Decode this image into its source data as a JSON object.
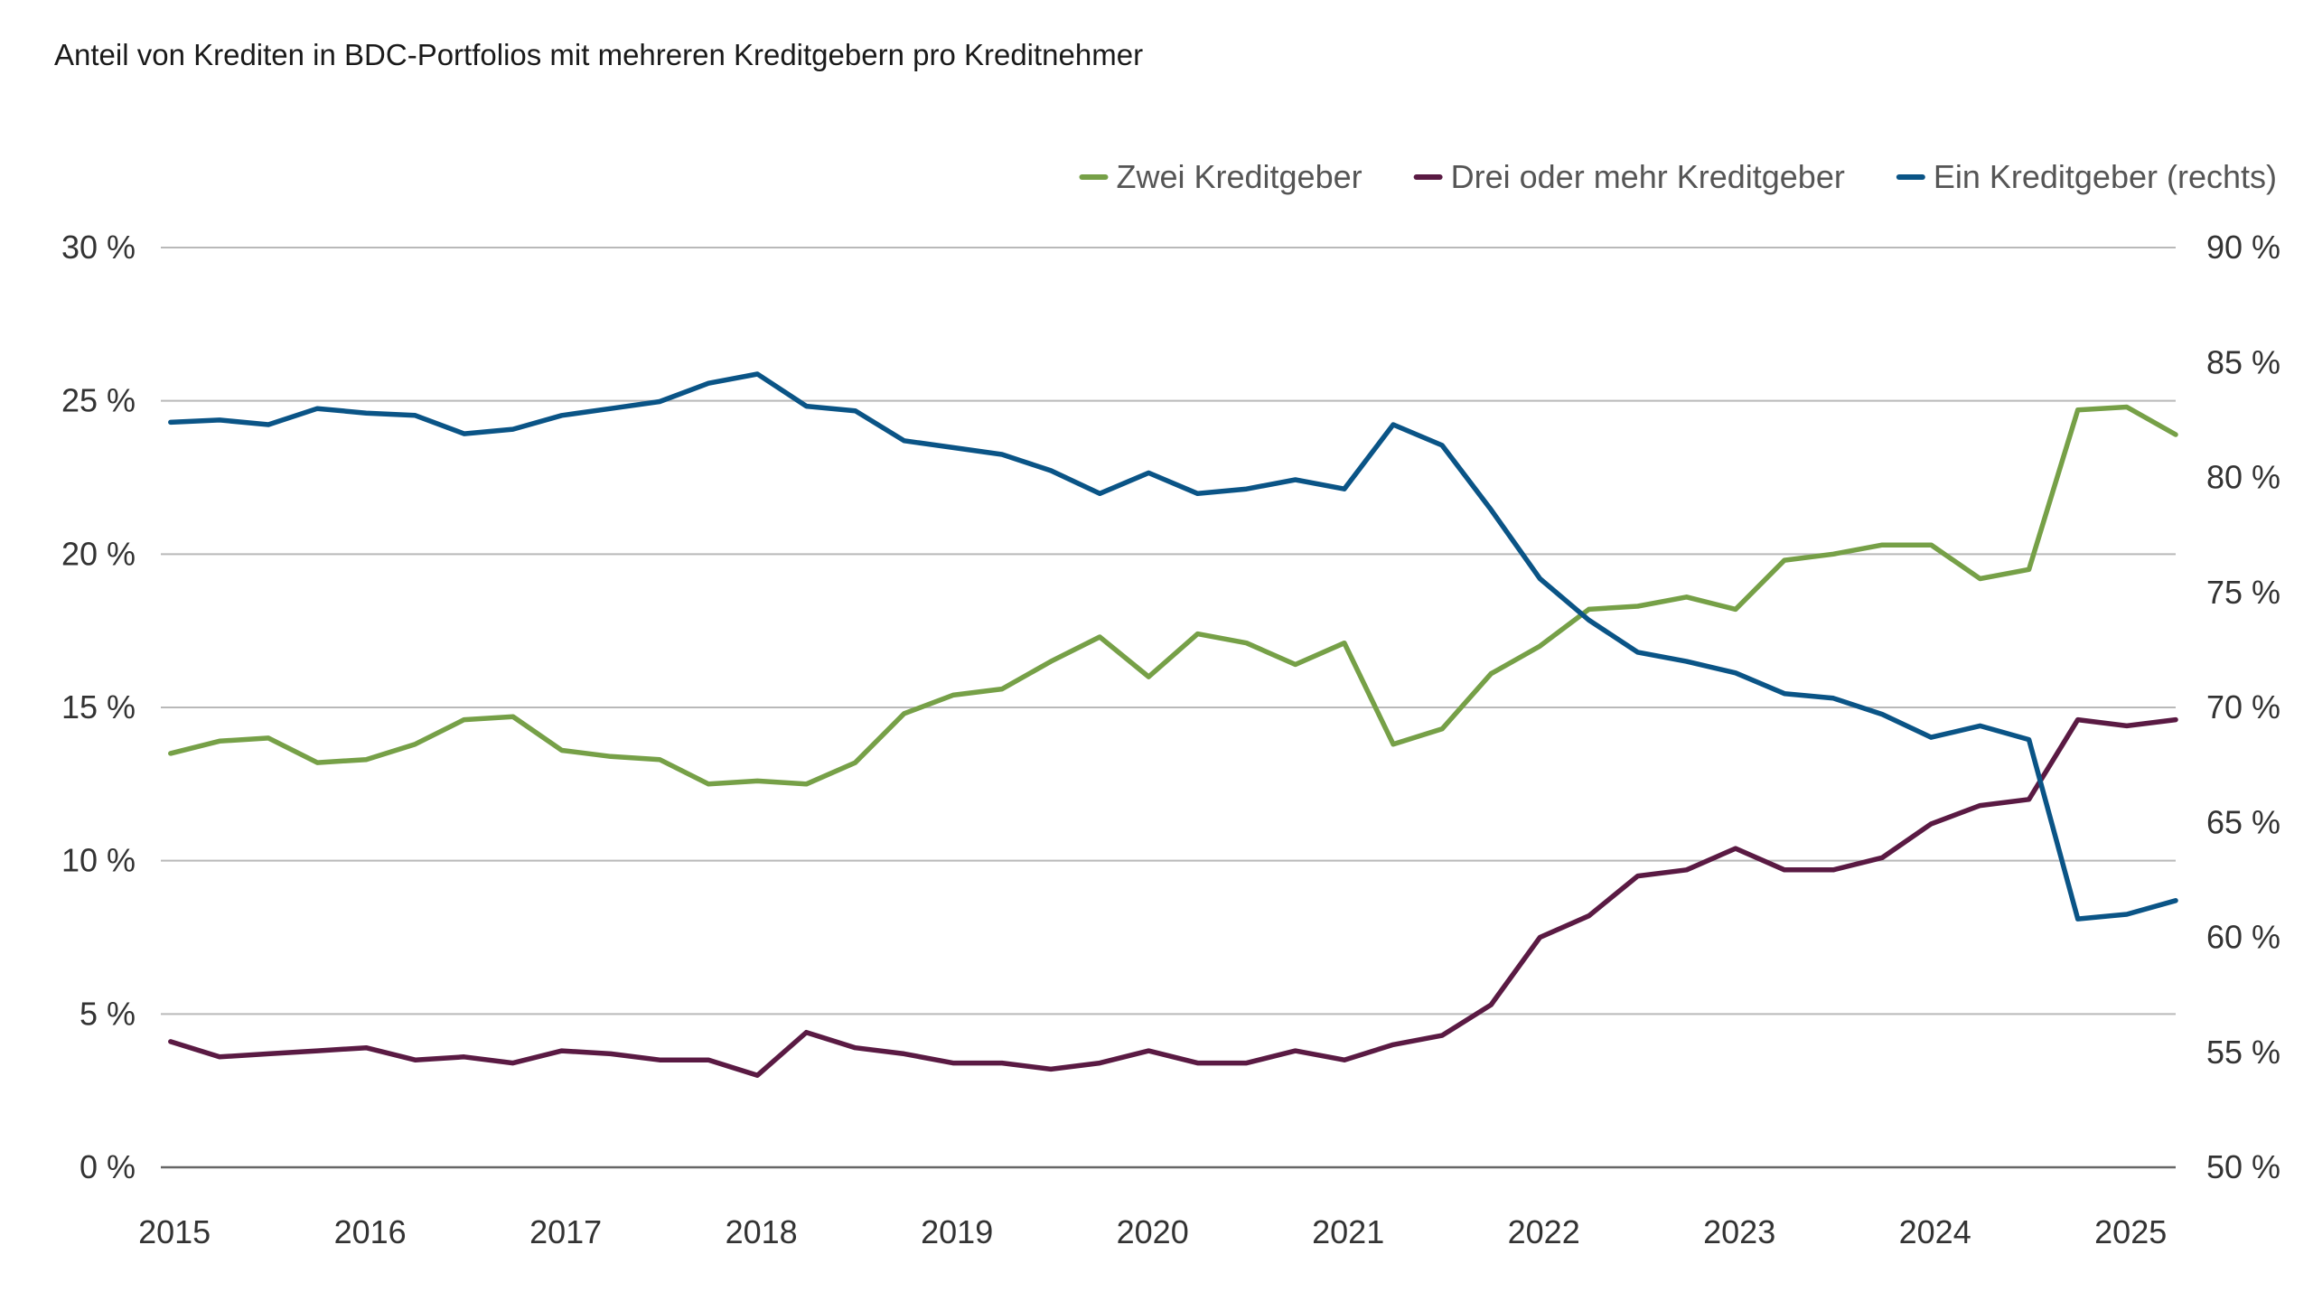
{
  "chart_data": {
    "type": "line",
    "title": "Anteil von Krediten in BDC-Portfolios mit mehreren Kreditgebern pro Kreditnehmer",
    "x_axis": {
      "start": 2014.95,
      "end": 2025.25,
      "year_ticks": [
        2015,
        2016,
        2017,
        2018,
        2019,
        2020,
        2021,
        2022,
        2023,
        2024,
        2025
      ],
      "year_labels": [
        "2015",
        "2016",
        "2017",
        "2018",
        "2019",
        "2020",
        "2021",
        "2022",
        "2023",
        "2024",
        "2025"
      ]
    },
    "y_left": {
      "range": [
        0,
        30
      ],
      "ticks": [
        0,
        5,
        10,
        15,
        20,
        25,
        30
      ],
      "tick_labels": [
        "0 %",
        "5 %",
        "10 %",
        "15 %",
        "20 %",
        "25 %",
        "30 %"
      ]
    },
    "y_right": {
      "range": [
        50,
        90
      ],
      "ticks": [
        50,
        55,
        60,
        65,
        70,
        75,
        80,
        85,
        90
      ],
      "tick_labels": [
        "50 %",
        "55 %",
        "60 %",
        "65 %",
        "70 %",
        "75 %",
        "80 %",
        "85 %",
        "90 %"
      ]
    },
    "grid": true,
    "legend_position": "top-right",
    "x": [
      2015.0,
      2015.25,
      2015.5,
      2015.75,
      2016.0,
      2016.25,
      2016.5,
      2016.75,
      2017.0,
      2017.25,
      2017.5,
      2017.75,
      2018.0,
      2018.25,
      2018.5,
      2018.75,
      2019.0,
      2019.25,
      2019.5,
      2019.75,
      2020.0,
      2020.25,
      2020.5,
      2020.75,
      2021.0,
      2021.25,
      2021.5,
      2021.75,
      2022.0,
      2022.25,
      2022.5,
      2022.75,
      2023.0,
      2023.25,
      2023.5,
      2023.75,
      2024.0,
      2024.25,
      2024.5,
      2024.75,
      2025.0,
      2025.25
    ],
    "series": [
      {
        "name": "Zwei Kreditgeber",
        "axis": "left",
        "color": "#76a047",
        "values": [
          13.5,
          13.9,
          14.0,
          13.2,
          13.3,
          13.8,
          14.6,
          14.7,
          13.6,
          13.4,
          13.3,
          12.5,
          12.6,
          12.5,
          13.2,
          14.8,
          15.4,
          15.6,
          16.5,
          17.3,
          16.0,
          17.4,
          17.1,
          16.4,
          17.1,
          13.8,
          14.3,
          16.1,
          17.0,
          18.2,
          18.3,
          18.6,
          18.2,
          19.8,
          20.0,
          20.3,
          20.3,
          19.2,
          19.5,
          24.7,
          24.8,
          23.9
        ]
      },
      {
        "name": "Drei oder mehr Kreditgeber",
        "axis": "left",
        "color": "#5a1a43",
        "values": [
          4.1,
          3.6,
          3.7,
          3.8,
          3.9,
          3.5,
          3.6,
          3.4,
          3.8,
          3.7,
          3.5,
          3.5,
          3.0,
          4.4,
          3.9,
          3.7,
          3.4,
          3.4,
          3.2,
          3.4,
          3.8,
          3.4,
          3.4,
          3.8,
          3.5,
          4.0,
          4.3,
          5.3,
          7.5,
          8.2,
          9.5,
          9.7,
          10.4,
          9.7,
          9.7,
          10.1,
          11.2,
          11.8,
          12.0,
          14.6,
          14.4,
          14.6
        ]
      },
      {
        "name": "Ein Kreditgeber (rechts)",
        "axis": "right",
        "color": "#0a5486",
        "values": [
          82.4,
          82.5,
          82.3,
          83.0,
          82.8,
          82.7,
          81.9,
          82.1,
          82.7,
          83.0,
          83.3,
          84.1,
          84.5,
          83.1,
          82.9,
          81.6,
          81.3,
          81.0,
          80.3,
          79.3,
          80.2,
          79.3,
          79.5,
          79.9,
          79.5,
          82.3,
          81.4,
          78.6,
          75.6,
          73.8,
          72.4,
          72.0,
          71.5,
          70.6,
          70.4,
          69.7,
          68.7,
          69.2,
          68.6,
          60.8,
          61.0,
          61.6
        ]
      }
    ]
  }
}
